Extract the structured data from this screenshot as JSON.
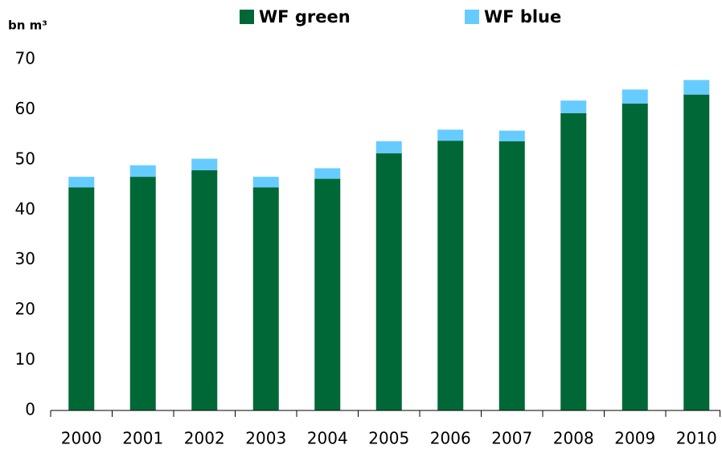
{
  "chart_data": {
    "type": "stacked_bar",
    "y_label": "bn m³",
    "categories": [
      "2000",
      "2001",
      "2002",
      "2003",
      "2004",
      "2005",
      "2006",
      "2007",
      "2008",
      "2009",
      "2010"
    ],
    "series": [
      {
        "name": "WF green",
        "color": "#006837",
        "values": [
          44.5,
          46.6,
          47.9,
          44.5,
          46.2,
          51.3,
          53.8,
          53.7,
          59.3,
          61.2,
          63.0
        ]
      },
      {
        "name": "WF blue",
        "color": "#66ccff",
        "values": [
          2.1,
          2.3,
          2.3,
          2.1,
          2.1,
          2.4,
          2.2,
          2.1,
          2.5,
          2.8,
          2.9
        ]
      }
    ],
    "ylim": [
      0,
      70
    ],
    "yticks": [
      0,
      10,
      20,
      30,
      40,
      50,
      60,
      70
    ],
    "grid": false,
    "legend": "top"
  }
}
